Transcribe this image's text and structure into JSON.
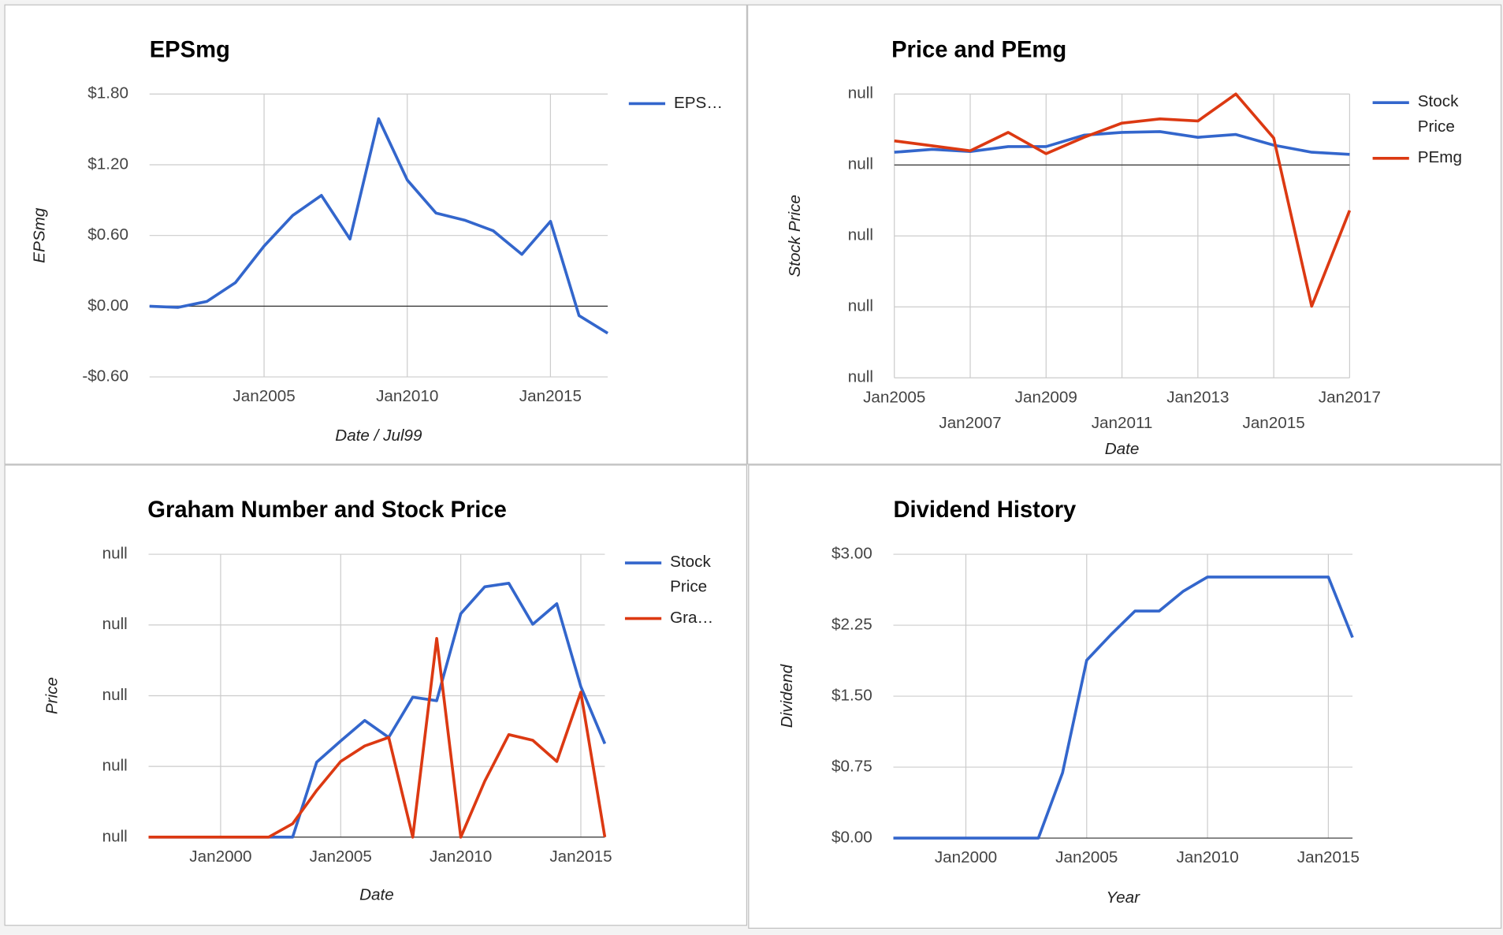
{
  "chart_data": [
    {
      "type": "line",
      "title": "EPSmg",
      "x_label": "Date / Jul99",
      "y_label": "EPSmg",
      "x": [
        2001,
        2002,
        2003,
        2004,
        2005,
        2006,
        2007,
        2008,
        2009,
        2010,
        2011,
        2012,
        2013,
        2014,
        2015,
        2016,
        2017
      ],
      "series": [
        {
          "name": "EPS…",
          "color": "#3366cc",
          "values": [
            0,
            -0.01,
            0.04,
            0.2,
            0.51,
            0.77,
            0.94,
            0.57,
            1.59,
            1.07,
            0.79,
            0.73,
            0.64,
            0.44,
            0.72,
            -0.08,
            -0.23
          ]
        }
      ],
      "xlim": [
        2001,
        2017
      ],
      "xticks": [
        {
          "value": 2005,
          "label": "Jan2005"
        },
        {
          "value": 2010,
          "label": "Jan2010"
        },
        {
          "value": 2015,
          "label": "Jan2015"
        }
      ],
      "ylim": [
        -0.6,
        1.8
      ],
      "yticks": [
        {
          "value": 1.8,
          "label": "$1.80"
        },
        {
          "value": 1.2,
          "label": "$1.20"
        },
        {
          "value": 0.6,
          "label": "$0.60"
        },
        {
          "value": 0,
          "label": "$0.00"
        },
        {
          "value": -0.6,
          "label": "-$0.60"
        }
      ],
      "grid": true,
      "legend": "right"
    },
    {
      "type": "line",
      "title": "Price and PEmg",
      "x_label": "Date",
      "y_label": "Stock Price",
      "x": [
        2005,
        2006,
        2007,
        2008,
        2009,
        2010,
        2011,
        2012,
        2013,
        2014,
        2015,
        2016,
        2017
      ],
      "series": [
        {
          "name": "Stock Price",
          "color": "#3366cc",
          "values": [
            0.18,
            0.22,
            0.19,
            0.26,
            0.26,
            0.42,
            0.46,
            0.47,
            0.39,
            0.43,
            0.28,
            0.18,
            0.15
          ]
        },
        {
          "name": "PEmg",
          "color": "#dc3912",
          "values": [
            0.34,
            0.27,
            0.2,
            0.46,
            0.16,
            0.39,
            0.59,
            0.65,
            0.62,
            1.0,
            0.38,
            -1.99,
            -0.64
          ]
        }
      ],
      "xlim": [
        2005,
        2017
      ],
      "xticks": [
        {
          "value": 2005,
          "label": "Jan2005"
        },
        {
          "value": 2007,
          "label": "Jan2007"
        },
        {
          "value": 2009,
          "label": "Jan2009"
        },
        {
          "value": 2011,
          "label": "Jan2011"
        },
        {
          "value": 2013,
          "label": "Jan2013"
        },
        {
          "value": 2015,
          "label": "Jan2015"
        },
        {
          "value": 2017,
          "label": "Jan2017"
        }
      ],
      "ylim": [
        -3,
        1
      ],
      "yticks": [
        {
          "value": 1,
          "label": "null"
        },
        {
          "value": 0,
          "label": "null"
        },
        {
          "value": -1,
          "label": "null"
        },
        {
          "value": -2,
          "label": "null"
        },
        {
          "value": -3,
          "label": "null"
        }
      ],
      "grid": true,
      "legend": "right"
    },
    {
      "type": "line",
      "title": "Graham Number and Stock Price",
      "x_label": "Date",
      "y_label": "Price",
      "x": [
        1997,
        1998,
        1999,
        2000,
        2001,
        2002,
        2003,
        2004,
        2005,
        2006,
        2007,
        2008,
        2009,
        2010,
        2011,
        2012,
        2013,
        2014,
        2015,
        2016
      ],
      "series": [
        {
          "name": "Stock Price",
          "color": "#3366cc",
          "values": [
            0,
            0,
            0,
            0,
            0,
            0,
            0,
            1.06,
            1.36,
            1.65,
            1.41,
            1.98,
            1.93,
            3.16,
            3.54,
            3.59,
            3.01,
            3.3,
            2.13,
            1.32
          ]
        },
        {
          "name": "Gra…",
          "color": "#dc3912",
          "values": [
            0,
            0,
            0,
            0,
            0,
            0,
            0.19,
            0.66,
            1.07,
            1.29,
            1.41,
            0,
            2.81,
            0,
            0.79,
            1.45,
            1.37,
            1.07,
            2.05,
            0
          ]
        }
      ],
      "xlim": [
        1997,
        2016
      ],
      "xticks": [
        {
          "value": 2000,
          "label": "Jan2000"
        },
        {
          "value": 2005,
          "label": "Jan2005"
        },
        {
          "value": 2010,
          "label": "Jan2010"
        },
        {
          "value": 2015,
          "label": "Jan2015"
        }
      ],
      "ylim": [
        0,
        4
      ],
      "yticks": [
        {
          "value": 4,
          "label": "null"
        },
        {
          "value": 3,
          "label": "null"
        },
        {
          "value": 2,
          "label": "null"
        },
        {
          "value": 1,
          "label": "null"
        },
        {
          "value": 0,
          "label": "null"
        }
      ],
      "grid": true,
      "legend": "right"
    },
    {
      "type": "line",
      "title": "Dividend History",
      "x_label": "Year",
      "y_label": "Dividend",
      "x": [
        1997,
        1998,
        1999,
        2000,
        2001,
        2002,
        2003,
        2004,
        2005,
        2006,
        2007,
        2008,
        2009,
        2010,
        2011,
        2012,
        2013,
        2014,
        2015,
        2016
      ],
      "series": [
        {
          "color": "#3366cc",
          "values": [
            0,
            0,
            0,
            0,
            0,
            0,
            0,
            0.69,
            1.88,
            2.15,
            2.4,
            2.4,
            2.61,
            2.76,
            2.76,
            2.76,
            2.76,
            2.76,
            2.76,
            2.12
          ]
        }
      ],
      "xlim": [
        1997,
        2016
      ],
      "xticks": [
        {
          "value": 2000,
          "label": "Jan2000"
        },
        {
          "value": 2005,
          "label": "Jan2005"
        },
        {
          "value": 2010,
          "label": "Jan2010"
        },
        {
          "value": 2015,
          "label": "Jan2015"
        }
      ],
      "ylim": [
        0,
        3
      ],
      "yticks": [
        {
          "value": 3,
          "label": "$3.00"
        },
        {
          "value": 2.25,
          "label": "$2.25"
        },
        {
          "value": 1.5,
          "label": "$1.50"
        },
        {
          "value": 0.75,
          "label": "$0.75"
        },
        {
          "value": 0,
          "label": "$0.00"
        }
      ],
      "grid": true,
      "legend": "none"
    }
  ]
}
